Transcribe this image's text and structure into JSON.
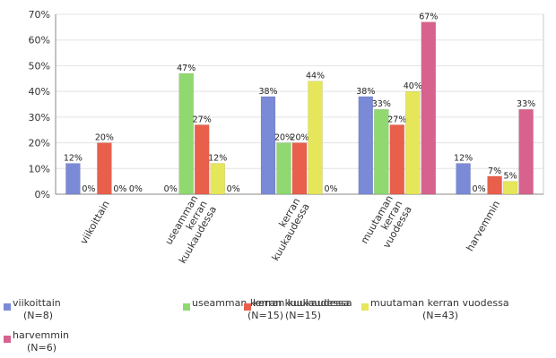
{
  "chart_data": {
    "type": "bar",
    "y_unit": "%",
    "ylim": [
      0,
      70
    ],
    "yticks": [
      "0%",
      "10%",
      "20%",
      "30%",
      "40%",
      "50%",
      "60%",
      "70%"
    ],
    "grid": true,
    "legend_position": "bottom",
    "categories": [
      [
        "viikoittain"
      ],
      [
        "useamman",
        "kerran",
        "kuukaudessa"
      ],
      [
        "kerran",
        "kuukaudessa"
      ],
      [
        "muutaman",
        "kerran",
        "vuodessa"
      ],
      [
        "harvemmin"
      ]
    ],
    "series": [
      {
        "name": "viikoittain",
        "n_label": "(N=8)",
        "color": "#7b8ad6",
        "values": [
          12,
          0,
          38,
          38,
          12
        ],
        "labels": [
          "12%",
          "0%",
          "38%",
          "38%",
          "12%"
        ]
      },
      {
        "name": "useamman kerran kuukaudessa",
        "n_label": "(N=15)",
        "color": "#90d870",
        "values": [
          0,
          47,
          20,
          33,
          0
        ],
        "labels": [
          "0%",
          "47%",
          "20%",
          "33%",
          "0%"
        ]
      },
      {
        "name": "kerran kuukaudessa",
        "n_label": "(N=15)",
        "color": "#e8604c",
        "values": [
          20,
          27,
          20,
          27,
          7
        ],
        "labels": [
          "20%",
          "27%",
          "20%",
          "27%",
          "7%"
        ]
      },
      {
        "name": "muutaman kerran vuodessa",
        "n_label": "(N=43)",
        "color": "#e6e65a",
        "values": [
          0,
          12,
          44,
          40,
          5
        ],
        "labels": [
          "0%",
          "12%",
          "44%",
          "40%",
          "5%"
        ]
      },
      {
        "name": "harvemmin",
        "n_label": "(N=6)",
        "color": "#d8628e",
        "values": [
          0,
          0,
          0,
          67,
          33
        ],
        "labels": [
          "0%",
          "0%",
          "0%",
          "67%",
          "33%"
        ]
      }
    ]
  }
}
